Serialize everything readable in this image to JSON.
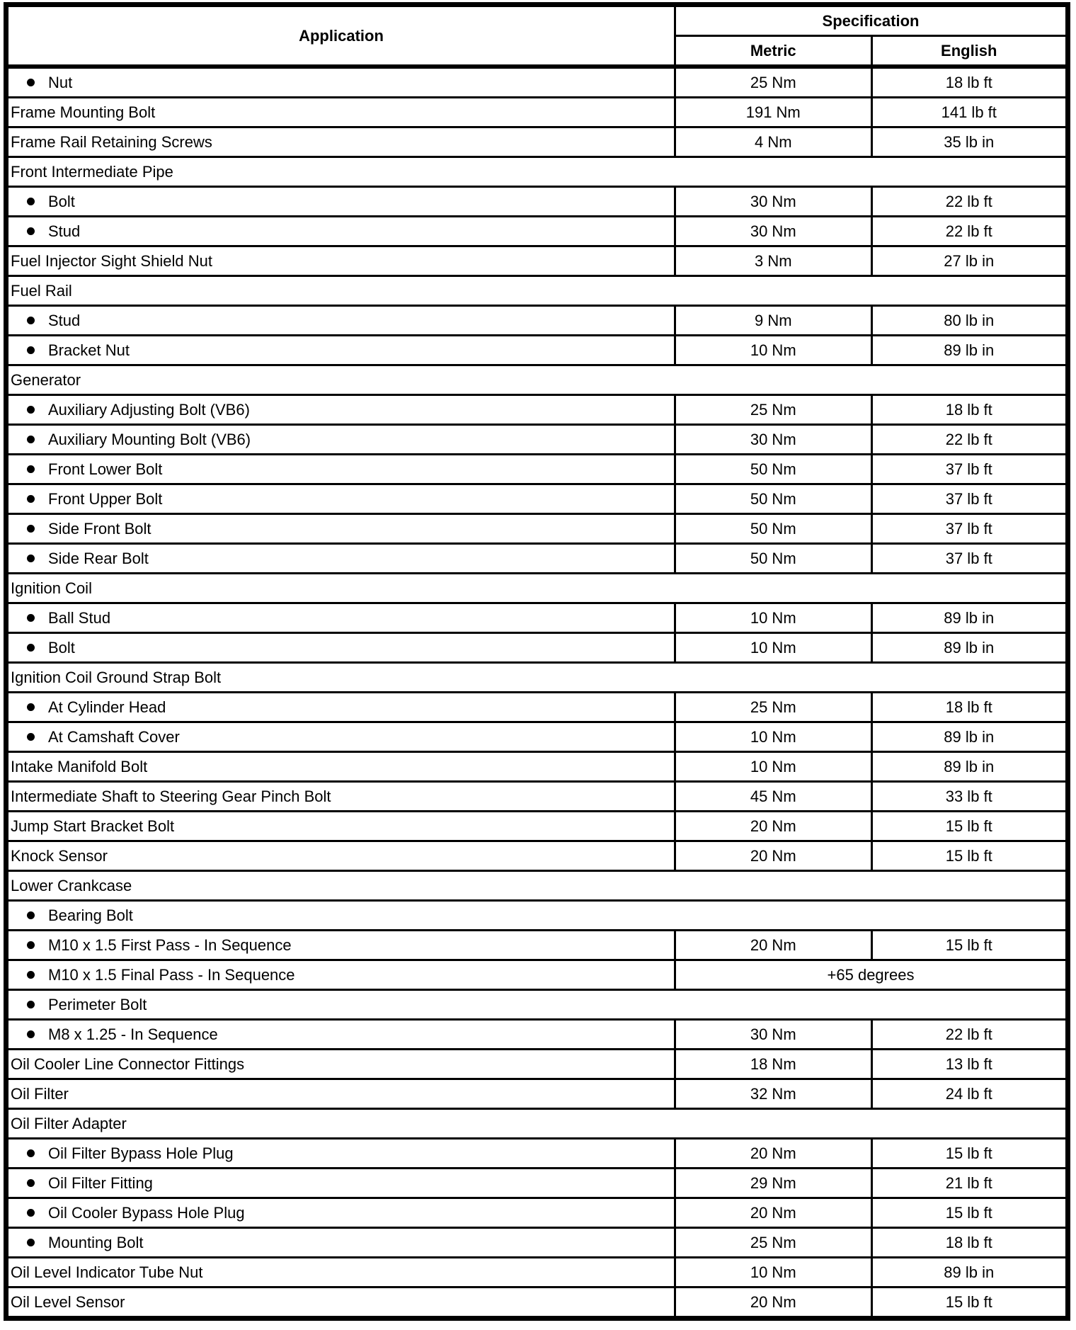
{
  "colors": {
    "text": "#000000",
    "border": "#000000",
    "background": "#ffffff"
  },
  "header": {
    "application": "Application",
    "specification": "Specification",
    "metric": "Metric",
    "english": "English"
  },
  "bullet_icon": "filled-circle",
  "rows": [
    {
      "type": "bullet-item",
      "application": "Nut",
      "metric": "25 Nm",
      "english": "18 lb ft"
    },
    {
      "type": "item",
      "application": "Frame Mounting Bolt",
      "metric": "191 Nm",
      "english": "141 lb ft"
    },
    {
      "type": "item",
      "application": "Frame Rail Retaining Screws",
      "metric": "4 Nm",
      "english": "35 lb in"
    },
    {
      "type": "section",
      "application": "Front Intermediate Pipe"
    },
    {
      "type": "bullet-item",
      "application": "Bolt",
      "metric": "30 Nm",
      "english": "22 lb ft"
    },
    {
      "type": "bullet-item",
      "application": "Stud",
      "metric": "30 Nm",
      "english": "22 lb ft"
    },
    {
      "type": "item",
      "application": "Fuel Injector Sight Shield Nut",
      "metric": "3 Nm",
      "english": "27 lb in"
    },
    {
      "type": "section",
      "application": "Fuel Rail"
    },
    {
      "type": "bullet-item",
      "application": "Stud",
      "metric": "9 Nm",
      "english": "80 lb in"
    },
    {
      "type": "bullet-item",
      "application": "Bracket Nut",
      "metric": "10 Nm",
      "english": "89 lb in"
    },
    {
      "type": "section",
      "application": "Generator"
    },
    {
      "type": "bullet-item",
      "application": "Auxiliary Adjusting Bolt (VB6)",
      "metric": "25 Nm",
      "english": "18 lb ft"
    },
    {
      "type": "bullet-item",
      "application": "Auxiliary Mounting Bolt (VB6)",
      "metric": "30 Nm",
      "english": "22 lb ft"
    },
    {
      "type": "bullet-item",
      "application": "Front Lower Bolt",
      "metric": "50 Nm",
      "english": "37 lb ft"
    },
    {
      "type": "bullet-item",
      "application": "Front Upper Bolt",
      "metric": "50 Nm",
      "english": "37 lb ft"
    },
    {
      "type": "bullet-item",
      "application": "Side Front Bolt",
      "metric": "50 Nm",
      "english": "37 lb ft"
    },
    {
      "type": "bullet-item",
      "application": "Side Rear Bolt",
      "metric": "50 Nm",
      "english": "37 lb ft"
    },
    {
      "type": "section",
      "application": "Ignition Coil"
    },
    {
      "type": "bullet-item",
      "application": "Ball Stud",
      "metric": "10 Nm",
      "english": "89 lb in"
    },
    {
      "type": "bullet-item",
      "application": "Bolt",
      "metric": "10 Nm",
      "english": "89 lb in"
    },
    {
      "type": "section",
      "application": "Ignition Coil Ground Strap Bolt"
    },
    {
      "type": "bullet-item",
      "application": "At Cylinder Head",
      "metric": "25 Nm",
      "english": "18 lb ft"
    },
    {
      "type": "bullet-item",
      "application": "At Camshaft Cover",
      "metric": "10 Nm",
      "english": "89 lb in"
    },
    {
      "type": "item",
      "application": "Intake Manifold Bolt",
      "metric": "10 Nm",
      "english": "89 lb in"
    },
    {
      "type": "item",
      "application": "Intermediate Shaft to Steering Gear Pinch Bolt",
      "metric": "45 Nm",
      "english": "33 lb ft"
    },
    {
      "type": "item",
      "application": "Jump Start Bracket Bolt",
      "metric": "20 Nm",
      "english": "15 lb ft"
    },
    {
      "type": "item",
      "application": "Knock Sensor",
      "metric": "20 Nm",
      "english": "15 lb ft"
    },
    {
      "type": "section",
      "application": "Lower Crankcase"
    },
    {
      "type": "bullet-section",
      "application": "Bearing Bolt"
    },
    {
      "type": "bullet-item",
      "application": "M10 x 1.5 First Pass - In Sequence",
      "metric": "20 Nm",
      "english": "15 lb ft"
    },
    {
      "type": "bullet-item-merged",
      "application": "M10 x 1.5 Final Pass - In Sequence",
      "merged_value": "+65 degrees"
    },
    {
      "type": "bullet-section",
      "application": "Perimeter Bolt"
    },
    {
      "type": "bullet-item",
      "application": "M8 x 1.25 - In Sequence",
      "metric": "30 Nm",
      "english": "22 lb ft"
    },
    {
      "type": "item",
      "application": "Oil Cooler Line Connector Fittings",
      "metric": "18 Nm",
      "english": "13 lb ft"
    },
    {
      "type": "item",
      "application": "Oil Filter",
      "metric": "32 Nm",
      "english": "24 lb ft"
    },
    {
      "type": "section",
      "application": "Oil Filter Adapter"
    },
    {
      "type": "bullet-item",
      "application": "Oil Filter Bypass Hole Plug",
      "metric": "20 Nm",
      "english": "15 lb ft"
    },
    {
      "type": "bullet-item",
      "application": "Oil Filter Fitting",
      "metric": "29 Nm",
      "english": "21 lb ft"
    },
    {
      "type": "bullet-item",
      "application": "Oil Cooler Bypass Hole Plug",
      "metric": "20 Nm",
      "english": "15 lb ft"
    },
    {
      "type": "bullet-item",
      "application": "Mounting Bolt",
      "metric": "25 Nm",
      "english": "18 lb ft"
    },
    {
      "type": "item",
      "application": "Oil Level Indicator Tube Nut",
      "metric": "10 Nm",
      "english": "89 lb in"
    },
    {
      "type": "item",
      "application": "Oil Level Sensor",
      "metric": "20 Nm",
      "english": "15 lb ft"
    }
  ]
}
